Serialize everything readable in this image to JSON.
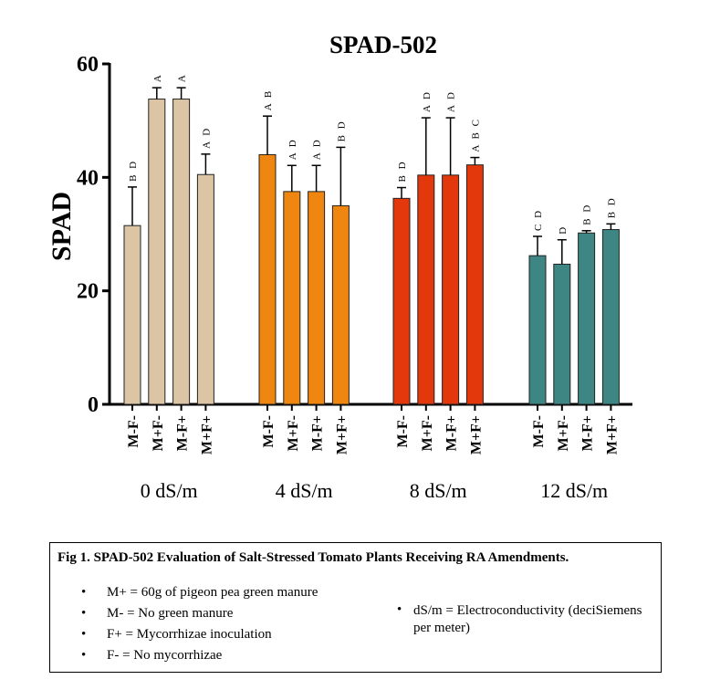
{
  "chart_data": {
    "type": "bar",
    "title": "SPAD-502",
    "ylabel": "SPAD",
    "ylim": [
      0,
      60
    ],
    "yticks": [
      "0",
      "20",
      "40",
      "60"
    ],
    "colors": {
      "0 dS/m": "#dcc5a4",
      "4 dS/m": "#ef8610",
      "8 dS/m": "#e2380c",
      "12 dS/m": "#3d8684"
    },
    "groups": [
      {
        "label": "0 dS/m",
        "bars": [
          {
            "category": "M-F-",
            "value": 31.5,
            "error": 6.8,
            "letters": "B D"
          },
          {
            "category": "M+F-",
            "value": 53.8,
            "error": 2.0,
            "letters": "A"
          },
          {
            "category": "M-F+",
            "value": 53.8,
            "error": 2.0,
            "letters": "A"
          },
          {
            "category": "M+F+",
            "value": 40.5,
            "error": 3.6,
            "letters": "A D"
          }
        ]
      },
      {
        "label": "4 dS/m",
        "bars": [
          {
            "category": "M-F-",
            "value": 44.0,
            "error": 6.8,
            "letters": "A B"
          },
          {
            "category": "M+F-",
            "value": 37.5,
            "error": 4.6,
            "letters": "A D"
          },
          {
            "category": "M-F+",
            "value": 37.5,
            "error": 4.6,
            "letters": "A D"
          },
          {
            "category": "M+F+",
            "value": 35.0,
            "error": 10.3,
            "letters": "B D"
          }
        ]
      },
      {
        "label": "8 dS/m",
        "bars": [
          {
            "category": "M-F-",
            "value": 36.3,
            "error": 1.9,
            "letters": "B D"
          },
          {
            "category": "M+F-",
            "value": 40.4,
            "error": 10.1,
            "letters": "A D"
          },
          {
            "category": "M-F+",
            "value": 40.4,
            "error": 10.1,
            "letters": "A D"
          },
          {
            "category": "M+F+",
            "value": 42.2,
            "error": 1.3,
            "letters": "A B C"
          }
        ]
      },
      {
        "label": "12 dS/m",
        "bars": [
          {
            "category": "M-F-",
            "value": 26.2,
            "error": 3.4,
            "letters": "C D"
          },
          {
            "category": "M+F-",
            "value": 24.7,
            "error": 4.3,
            "letters": "D"
          },
          {
            "category": "M-F+",
            "value": 30.2,
            "error": 0.4,
            "letters": "B D"
          },
          {
            "category": "M+F+",
            "value": 30.8,
            "error": 1.0,
            "letters": "B D"
          }
        ]
      }
    ]
  },
  "caption": {
    "title": "Fig 1. SPAD-502 Evaluation of Salt-Stressed Tomato Plants Receiving RA Amendments.",
    "bullet": "•",
    "left_items": [
      "M+ = 60g of pigeon pea green manure",
      "M- = No green manure",
      "F+ = Mycorrhizae inoculation",
      "F- = No mycorrhizae"
    ],
    "right_item": "dS/m = Electroconductivity (deciSiemens per meter)"
  }
}
